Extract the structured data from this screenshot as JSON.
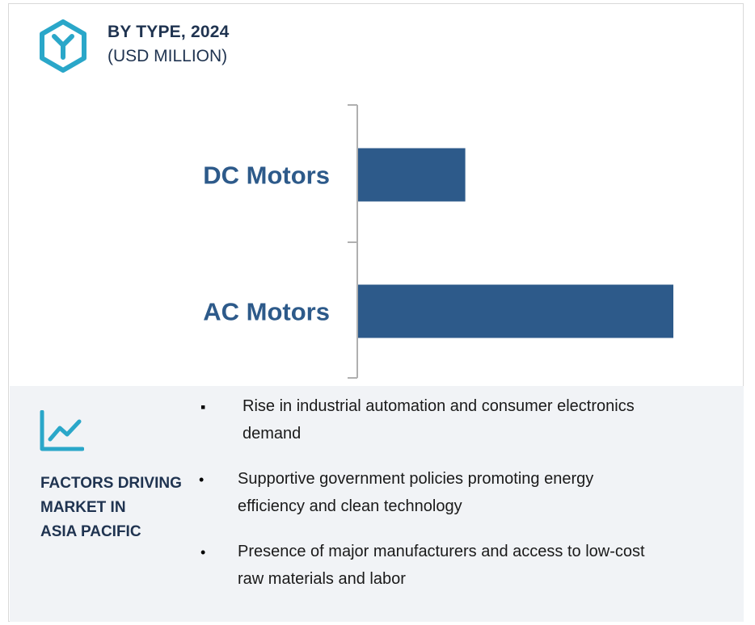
{
  "header": {
    "title": "BY TYPE, 2024",
    "subtitle": "(USD MILLION)",
    "icon": "hexagon-y-logo-icon"
  },
  "colors": {
    "accent": "#2d5a8a",
    "heading": "#1f3350",
    "icon_teal": "#2aa7c9",
    "axis": "#b0b0b0",
    "panel": "#f1f3f6"
  },
  "chart_data": {
    "type": "bar",
    "orientation": "horizontal",
    "categories": [
      "DC Motors",
      "AC Motors"
    ],
    "values": [
      34,
      100
    ],
    "value_scale": "relative",
    "xlim": [
      0,
      100
    ],
    "grid": false,
    "legend": "none"
  },
  "factors": {
    "icon": "line-chart-icon",
    "label_lines": [
      "FACTORS DRIVING",
      "MARKET IN",
      "ASIA PACIFIC"
    ],
    "items": [
      {
        "bullet": "▪",
        "line1": "Rise in industrial automation and consumer electronics",
        "line2": "demand"
      },
      {
        "bullet": "•",
        "line1": "Supportive government policies promoting energy",
        "line2": "efficiency and clean technology"
      },
      {
        "bullet": "•",
        "line1": "Presence of major manufacturers and access to low-cost",
        "line2": "raw materials and labor"
      }
    ]
  }
}
